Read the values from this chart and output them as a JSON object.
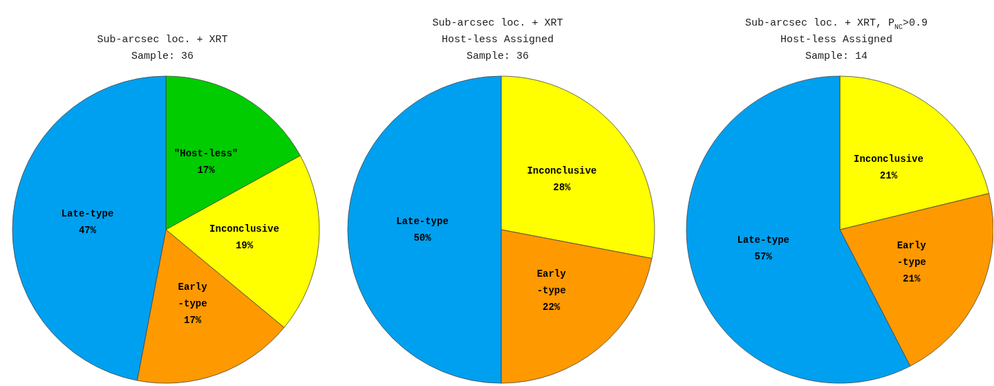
{
  "chart_data": [
    {
      "type": "pie",
      "title": "Sub-arcsec loc. + XRT\nSample: 36",
      "categories": [
        "\"Host-less\"",
        "Inconclusive",
        "Early\n-type",
        "Late-type"
      ],
      "values": [
        17,
        19,
        17,
        47
      ],
      "colors": [
        "#00cc00",
        "#ffff00",
        "#ff9900",
        "#00a0f0"
      ],
      "value_labels": [
        "17%",
        "19%",
        "17%",
        "47%"
      ]
    },
    {
      "type": "pie",
      "title": "Sub-arcsec loc. + XRT\nHost-less Assigned\nSample: 36",
      "categories": [
        "Inconclusive",
        "Early\n-type",
        "Late-type"
      ],
      "values": [
        28,
        22,
        50
      ],
      "colors": [
        "#ffff00",
        "#ff9900",
        "#00a0f0"
      ],
      "value_labels": [
        "28%",
        "22%",
        "50%"
      ]
    },
    {
      "type": "pie",
      "title": "Sub-arcsec loc. + XRT, P$_{NC}$>0.9\nHost-less Assigned\nSample: 14",
      "categories": [
        "Inconclusive",
        "Early\n-type",
        "Late-type"
      ],
      "values": [
        21,
        21,
        57
      ],
      "colors": [
        "#ffff00",
        "#ff9900",
        "#00a0f0"
      ],
      "value_labels": [
        "21%",
        "21%",
        "57%"
      ]
    }
  ]
}
